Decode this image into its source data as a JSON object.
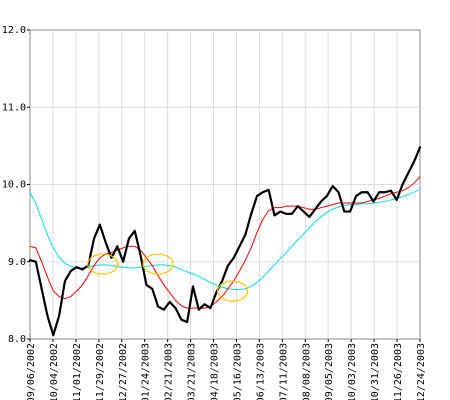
{
  "chart_data": {
    "type": "line",
    "ylim": [
      8.0,
      12.0
    ],
    "y_ticks": [
      "8.0",
      "9.0",
      "10.0",
      "11.0",
      "12.0"
    ],
    "x_tick_labels": [
      "09/06/2002",
      "10/04/2002",
      "11/01/2002",
      "11/29/2002",
      "12/27/2002",
      "01/24/2003",
      "02/21/2003",
      "03/21/2003",
      "04/18/2003",
      "05/16/2003",
      "06/13/2003",
      "07/11/2003",
      "08/08/2003",
      "09/05/2003",
      "10/03/2003",
      "10/31/2003",
      "11/26/2003",
      "12/24/2003"
    ],
    "grid": true,
    "series": [
      {
        "color": "#000000",
        "values": [
          9.02,
          9.0,
          8.65,
          8.3,
          8.05,
          8.3,
          8.75,
          8.88,
          8.93,
          8.9,
          8.95,
          9.3,
          9.48,
          9.25,
          9.05,
          9.2,
          9.0,
          9.3,
          9.4,
          9.08,
          8.7,
          8.65,
          8.42,
          8.38,
          8.48,
          8.4,
          8.25,
          8.22,
          8.68,
          8.38,
          8.45,
          8.4,
          8.6,
          8.75,
          8.95,
          9.05,
          9.2,
          9.35,
          9.62,
          9.85,
          9.9,
          9.93,
          9.6,
          9.65,
          9.62,
          9.62,
          9.72,
          9.65,
          9.58,
          9.68,
          9.78,
          9.85,
          9.98,
          9.9,
          9.65,
          9.65,
          9.85,
          9.9,
          9.9,
          9.78,
          9.9,
          9.9,
          9.92,
          9.8,
          10.0,
          10.15,
          10.3,
          10.48
        ]
      },
      {
        "color": "#ff0000",
        "values": [
          9.2,
          9.18,
          9.0,
          8.8,
          8.62,
          8.55,
          8.52,
          8.55,
          8.62,
          8.7,
          8.82,
          8.95,
          9.05,
          9.1,
          9.12,
          9.15,
          9.18,
          9.2,
          9.2,
          9.15,
          9.05,
          8.95,
          8.82,
          8.7,
          8.6,
          8.5,
          8.43,
          8.4,
          8.4,
          8.4,
          8.4,
          8.42,
          8.48,
          8.55,
          8.65,
          8.75,
          8.88,
          9.02,
          9.18,
          9.38,
          9.55,
          9.66,
          9.7,
          9.7,
          9.72,
          9.72,
          9.72,
          9.7,
          9.68,
          9.68,
          9.7,
          9.72,
          9.74,
          9.76,
          9.76,
          9.76,
          9.76,
          9.76,
          9.78,
          9.8,
          9.82,
          9.85,
          9.88,
          9.9,
          9.92,
          9.96,
          10.02,
          10.1
        ]
      },
      {
        "color": "#00e0e0",
        "values": [
          9.9,
          9.75,
          9.55,
          9.35,
          9.18,
          9.06,
          8.98,
          8.94,
          8.92,
          8.92,
          8.93,
          8.95,
          8.96,
          8.96,
          8.95,
          8.94,
          8.93,
          8.92,
          8.92,
          8.93,
          8.94,
          8.95,
          8.96,
          8.96,
          8.95,
          8.93,
          8.9,
          8.87,
          8.84,
          8.81,
          8.77,
          8.73,
          8.7,
          8.67,
          8.65,
          8.64,
          8.64,
          8.65,
          8.68,
          8.73,
          8.8,
          8.88,
          8.96,
          9.04,
          9.12,
          9.2,
          9.28,
          9.36,
          9.44,
          9.52,
          9.58,
          9.64,
          9.68,
          9.71,
          9.73,
          9.74,
          9.74,
          9.75,
          9.75,
          9.76,
          9.77,
          9.78,
          9.8,
          9.82,
          9.84,
          9.87,
          9.9,
          9.94
        ]
      }
    ],
    "annotations": [
      {
        "shape": "ellipse",
        "color": "#ffc000",
        "x_index": 12.5,
        "y": 8.97
      },
      {
        "shape": "ellipse",
        "color": "#ffc000",
        "x_index": 22.0,
        "y": 8.97
      },
      {
        "shape": "ellipse",
        "color": "#ffc000",
        "x_index": 34.8,
        "y": 8.62
      }
    ]
  }
}
